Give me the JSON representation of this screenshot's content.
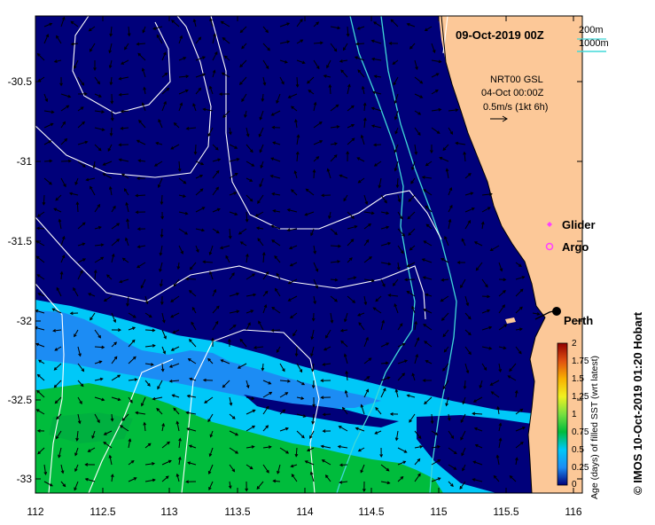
{
  "title": "09-Oct-2019 00Z",
  "depth_legend": {
    "shallow": "200m",
    "deep": "1000m"
  },
  "current_legend": {
    "source": "NRT00 GSL",
    "date": "04-Oct 00:00Z",
    "scale": "0.5m/s (1kt 6h)"
  },
  "markers": {
    "glider": "Glider",
    "argo": "Argo",
    "city": "Perth"
  },
  "copyright": "© IMOS 10-Oct-2019 01:20 Hobart",
  "colorbar": {
    "label": "Age (days) of filled SST (wrt latest)",
    "ticks": [
      "0",
      "0.25",
      "0.5",
      "0.75",
      "1",
      "1.25",
      "1.5",
      "1.75",
      "2"
    ],
    "range": [
      0,
      2
    ]
  },
  "axes": {
    "lon_ticks": [
      "112",
      "112.5",
      "113",
      "113.5",
      "114",
      "114.5",
      "115",
      "115.5",
      "116"
    ],
    "lat_ticks": [
      "-30.5",
      "-31",
      "-31.5",
      "-32",
      "-32.5",
      "-33"
    ],
    "lon_range": [
      112,
      116.1
    ],
    "lat_range": [
      -33.1,
      -30.05
    ]
  },
  "colors": {
    "ocean_recent": "#00007a",
    "age_quarter": "#1c8cf4",
    "age_half": "#00c8f8",
    "age_three_quarter": "#00bc3c",
    "land": "#fcc898",
    "isobath": "#40d8d8"
  }
}
